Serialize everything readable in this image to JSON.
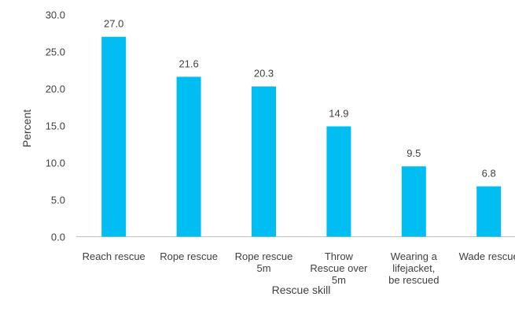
{
  "chart_data": {
    "type": "bar",
    "categories": [
      [
        "Reach rescue"
      ],
      [
        "Rope rescue"
      ],
      [
        "Rope rescue",
        "5m"
      ],
      [
        "Throw",
        "Rescue over",
        "5m"
      ],
      [
        "Wearing a",
        "lifejacket,",
        "be rescued"
      ],
      [
        "Wade rescue"
      ]
    ],
    "values": [
      27.0,
      21.6,
      20.3,
      14.9,
      9.5,
      6.8
    ],
    "value_labels": [
      "27.0",
      "21.6",
      "20.3",
      "14.9",
      "9.5",
      "6.8"
    ],
    "yticks": [
      "0.0",
      "5.0",
      "10.0",
      "15.0",
      "20.0",
      "25.0",
      "30.0"
    ],
    "ylim": [
      0,
      30
    ],
    "xlabel": "Rescue skill",
    "ylabel": "Percent",
    "grid": false,
    "legend": "none",
    "bar_color": "#00bef2",
    "axis_color": "#bfbfbf",
    "text_color": "#404040"
  }
}
